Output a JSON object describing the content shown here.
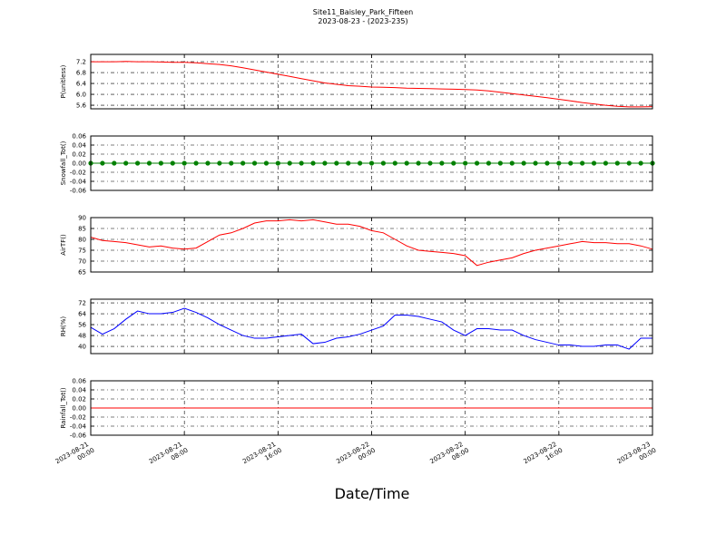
{
  "title": "Site11_Baisley_Park_Fifteen",
  "subtitle": "2023-08-23 - (2023-235)",
  "xlabel": "Date/Time",
  "xlim": [
    "2023-08-21 00:00",
    "2023-08-23 00:00"
  ],
  "xticks": [
    "2023-08-21 00:00",
    "2023-08-21 08:00",
    "2023-08-21 16:00",
    "2023-08-22 00:00",
    "2023-08-22 08:00",
    "2023-08-22 16:00",
    "2023-08-23 00:00"
  ],
  "x": [
    "2023-08-21 00:00",
    "2023-08-21 01:00",
    "2023-08-21 02:00",
    "2023-08-21 03:00",
    "2023-08-21 04:00",
    "2023-08-21 05:00",
    "2023-08-21 06:00",
    "2023-08-21 07:00",
    "2023-08-21 08:00",
    "2023-08-21 09:00",
    "2023-08-21 10:00",
    "2023-08-21 11:00",
    "2023-08-21 12:00",
    "2023-08-21 13:00",
    "2023-08-21 14:00",
    "2023-08-21 15:00",
    "2023-08-21 16:00",
    "2023-08-21 17:00",
    "2023-08-21 18:00",
    "2023-08-21 19:00",
    "2023-08-21 20:00",
    "2023-08-21 21:00",
    "2023-08-21 22:00",
    "2023-08-21 23:00",
    "2023-08-22 00:00",
    "2023-08-22 01:00",
    "2023-08-22 02:00",
    "2023-08-22 03:00",
    "2023-08-22 04:00",
    "2023-08-22 05:00",
    "2023-08-22 06:00",
    "2023-08-22 07:00",
    "2023-08-22 08:00",
    "2023-08-22 09:00",
    "2023-08-22 10:00",
    "2023-08-22 11:00",
    "2023-08-22 12:00",
    "2023-08-22 13:00",
    "2023-08-22 14:00",
    "2023-08-22 15:00",
    "2023-08-22 16:00",
    "2023-08-22 17:00",
    "2023-08-22 18:00",
    "2023-08-22 19:00",
    "2023-08-22 20:00",
    "2023-08-22 21:00",
    "2023-08-22 22:00",
    "2023-08-22 23:00",
    "2023-08-23 00:00"
  ],
  "chart_data": [
    {
      "type": "line",
      "ylabel": "P(unitless)",
      "color": "#ff0000",
      "grid": true,
      "ylim": [
        5.47,
        7.47
      ],
      "yticks": [
        5.6,
        {
          "value": 6,
          "label": "6.0"
        },
        6.4,
        6.8,
        7.2
      ],
      "values": [
        7.2,
        7.2,
        7.2,
        7.21,
        7.2,
        7.2,
        7.19,
        7.18,
        7.18,
        7.16,
        7.13,
        7.1,
        7.05,
        6.98,
        6.9,
        6.82,
        6.74,
        6.66,
        6.58,
        6.5,
        6.42,
        6.37,
        6.32,
        6.3,
        6.27,
        6.26,
        6.25,
        6.23,
        6.22,
        6.21,
        6.2,
        6.19,
        6.18,
        6.16,
        6.13,
        6.08,
        6.03,
        5.98,
        5.93,
        5.88,
        5.82,
        5.76,
        5.7,
        5.65,
        5.6,
        5.56,
        5.54,
        5.54,
        5.55
      ]
    },
    {
      "type": "line",
      "ylabel": "Snowfall_Tot()",
      "color": "#008000",
      "marker": "o",
      "grid": true,
      "ylim": [
        -0.06,
        0.06
      ],
      "yticks": [
        -0.06,
        -0.04,
        -0.02,
        {
          "value": 0,
          "label": "0.00"
        },
        0.02,
        0.04,
        0.06
      ],
      "values": [
        0,
        0,
        0,
        0,
        0,
        0,
        0,
        0,
        0,
        0,
        0,
        0,
        0,
        0,
        0,
        0,
        0,
        0,
        0,
        0,
        0,
        0,
        0,
        0,
        0,
        0,
        0,
        0,
        0,
        0,
        0,
        0,
        0,
        0,
        0,
        0,
        0,
        0,
        0,
        0,
        0,
        0,
        0,
        0,
        0,
        0,
        0,
        0,
        0
      ]
    },
    {
      "type": "line",
      "ylabel": "AirTF()",
      "color": "#ff0000",
      "grid": true,
      "ylim": [
        65,
        90
      ],
      "yticks": [
        65,
        70,
        75,
        80,
        85,
        90
      ],
      "values": [
        81,
        79.5,
        79,
        78.5,
        77.5,
        76.5,
        77,
        76,
        75.5,
        76,
        79,
        82,
        83,
        85,
        87.5,
        88.5,
        88.5,
        89,
        88.5,
        89,
        88,
        87,
        87,
        86,
        84,
        83,
        80,
        77,
        75,
        74.5,
        74,
        73.5,
        72.5,
        68,
        69.5,
        70.5,
        71.5,
        73.5,
        75,
        76,
        77,
        78,
        79,
        78.5,
        78.5,
        78,
        78,
        77,
        75.5
      ]
    },
    {
      "type": "line",
      "ylabel": "RH(%)",
      "color": "#0000ff",
      "grid": true,
      "ylim": [
        34.7,
        74.7
      ],
      "yticks": [
        40,
        48,
        56,
        64,
        72
      ],
      "values": [
        54,
        49,
        53,
        60,
        66,
        64,
        64,
        65,
        68,
        65,
        61,
        56,
        52,
        48,
        46,
        46,
        47,
        48,
        49,
        42,
        43,
        46,
        47,
        49,
        52,
        55,
        63,
        63,
        62,
        60,
        58,
        52,
        48,
        53,
        53,
        52,
        52,
        48,
        45,
        43,
        41,
        41,
        40,
        40,
        41,
        41,
        38,
        46,
        46
      ]
    },
    {
      "type": "line",
      "ylabel": "Rainfall_Tot()",
      "color": "#ff0000",
      "grid": true,
      "ylim": [
        -0.06,
        0.06
      ],
      "yticks": [
        -0.06,
        -0.04,
        -0.02,
        {
          "value": 0,
          "label": "0.00"
        },
        0.02,
        0.04,
        0.06
      ],
      "values": [
        0,
        0,
        0,
        0,
        0,
        0,
        0,
        0,
        0,
        0,
        0,
        0,
        0,
        0,
        0,
        0,
        0,
        0,
        0,
        0,
        0,
        0,
        0,
        0,
        0,
        0,
        0,
        0,
        0,
        0,
        0,
        0,
        0,
        0,
        0,
        0,
        0,
        0,
        0,
        0,
        0,
        0,
        0,
        0,
        0,
        0,
        0,
        0,
        0
      ]
    }
  ]
}
